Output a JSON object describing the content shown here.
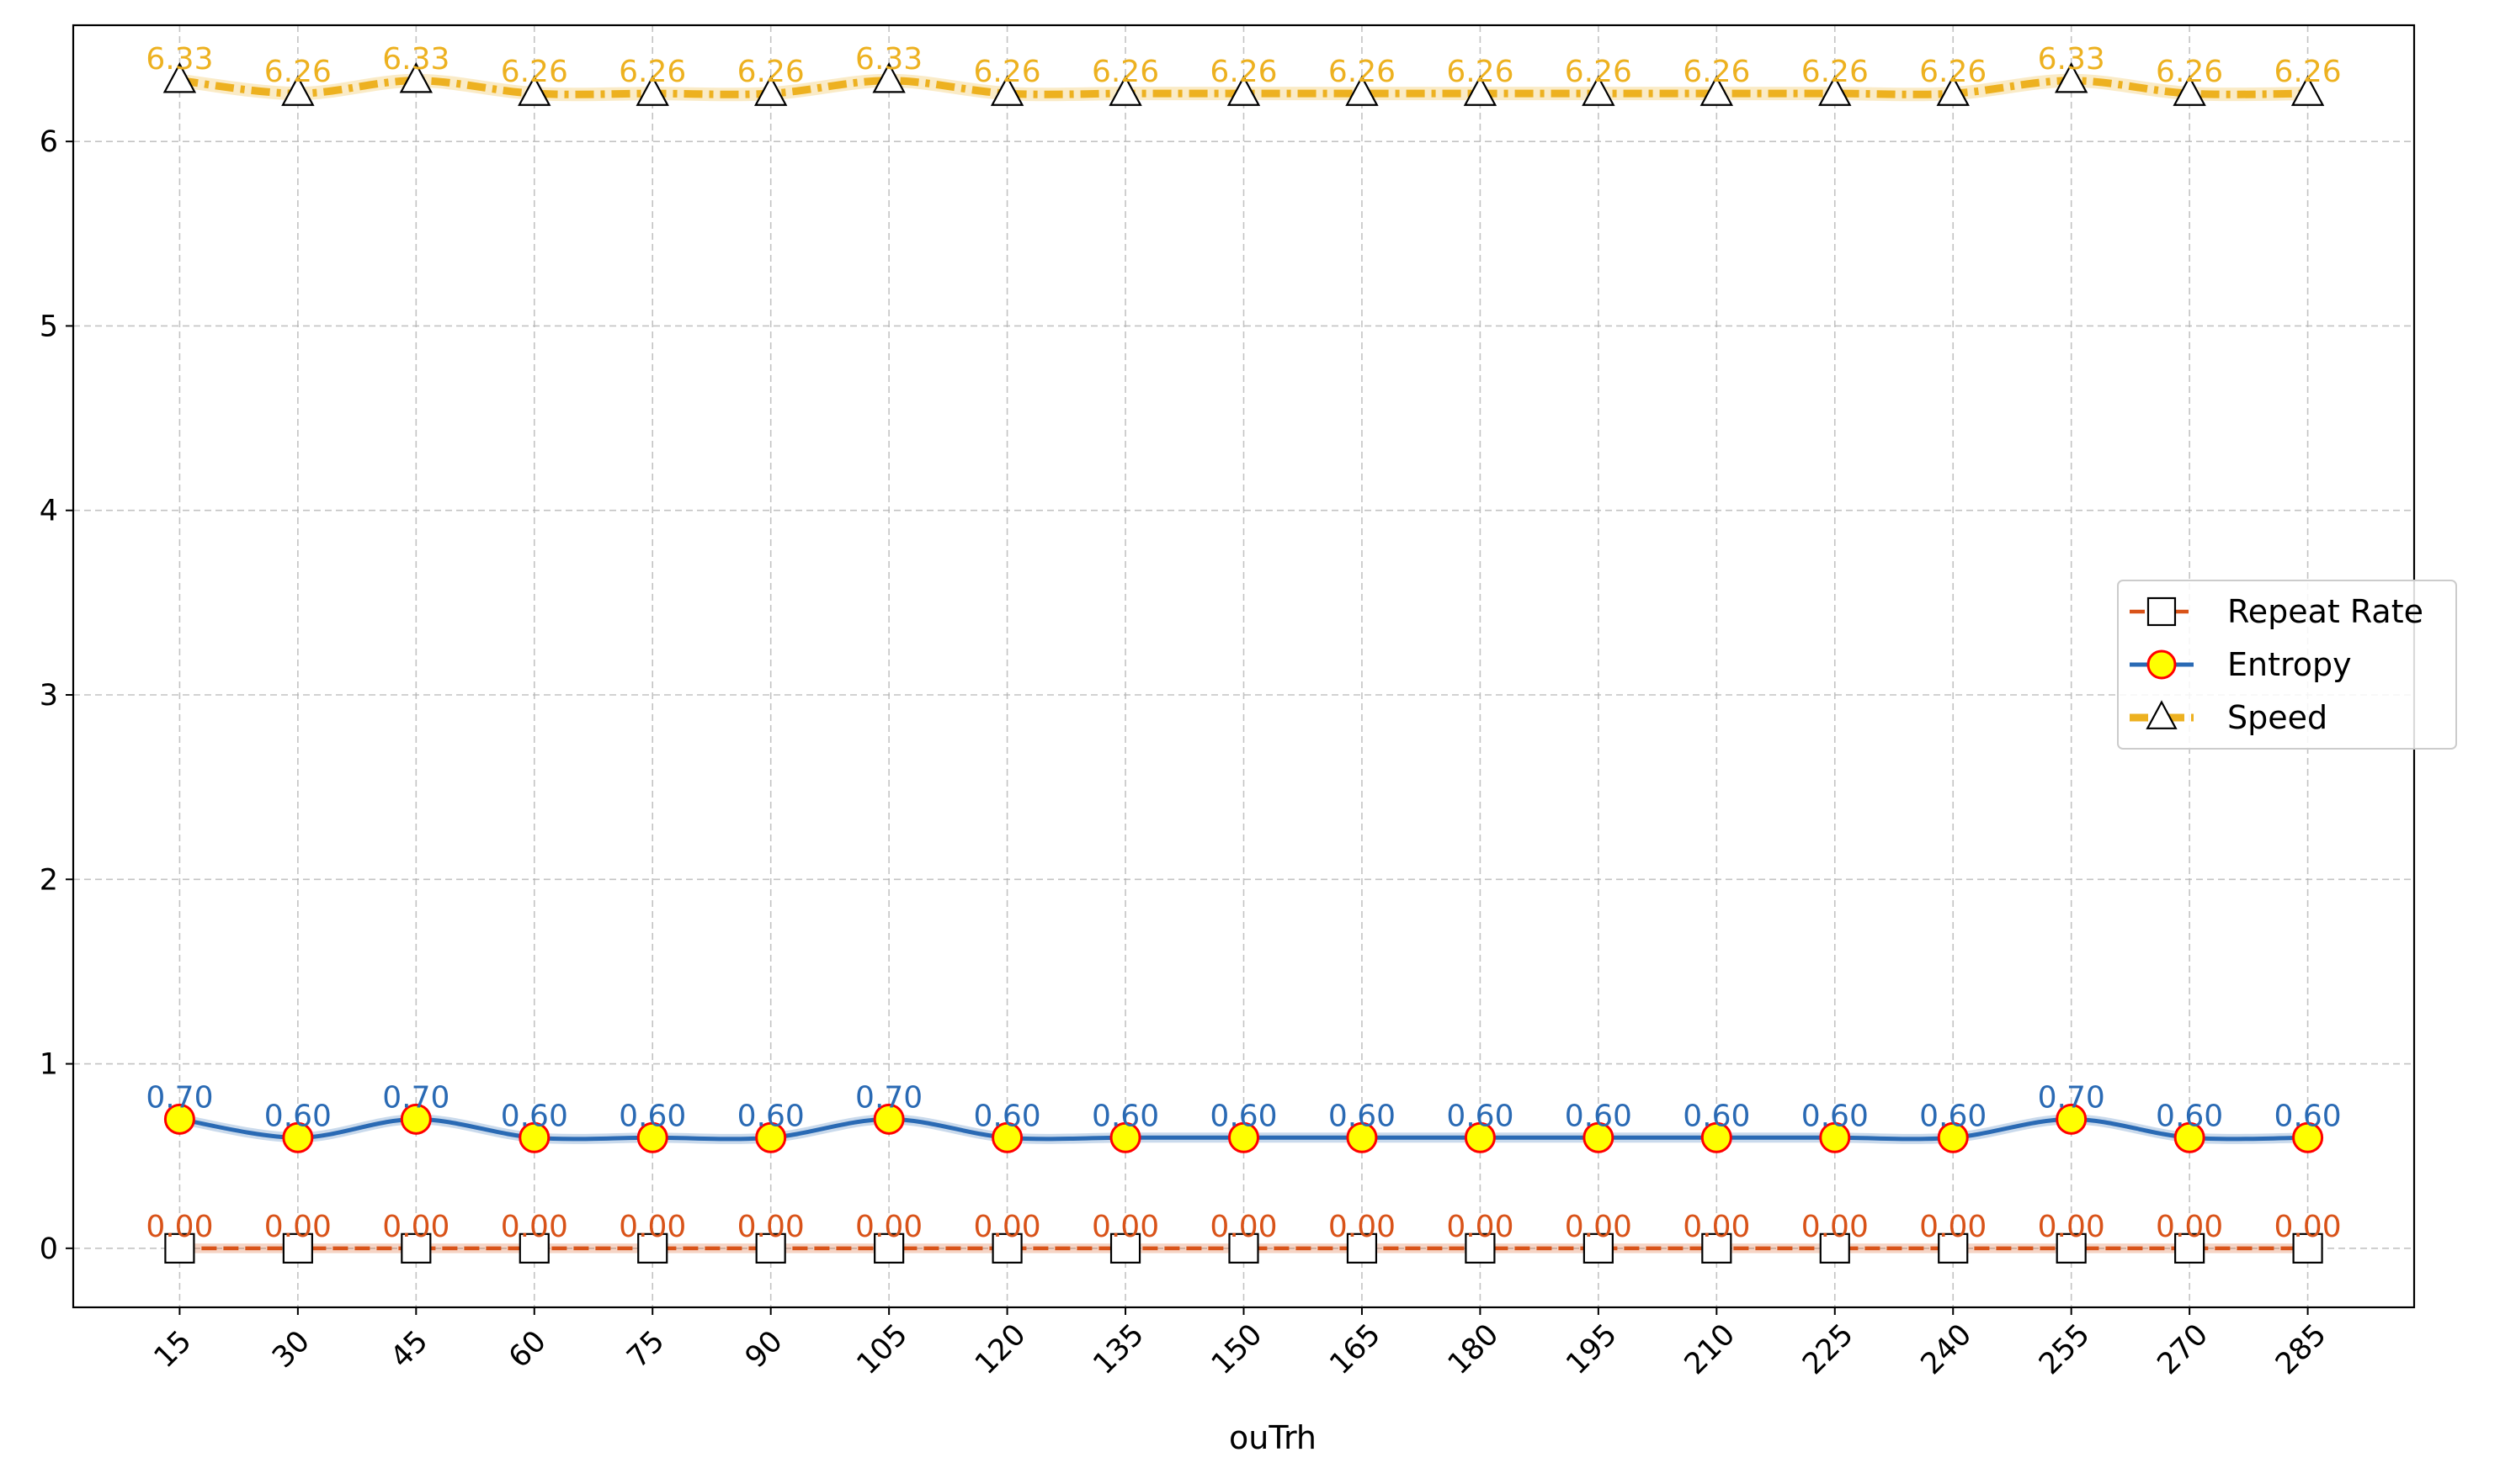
{
  "chart_data": {
    "type": "line",
    "title": "",
    "xlabel": "ouTrh",
    "ylabel": "",
    "x": [
      15,
      30,
      45,
      60,
      75,
      90,
      105,
      120,
      135,
      150,
      165,
      180,
      195,
      210,
      225,
      240,
      255,
      270,
      285
    ],
    "x_tick_labels": [
      "15",
      "30",
      "45",
      "60",
      "75",
      "90",
      "105",
      "120",
      "135",
      "150",
      "165",
      "180",
      "195",
      "210",
      "225",
      "240",
      "255",
      "270",
      "285"
    ],
    "ylim": [
      -0.32,
      6.63
    ],
    "y_ticks": [
      0,
      1,
      2,
      3,
      4,
      5,
      6
    ],
    "y_tick_labels": [
      "0",
      "1",
      "2",
      "3",
      "4",
      "5",
      "6"
    ],
    "grid": true,
    "legend_position": "center-right",
    "series": [
      {
        "name": "Repeat Rate",
        "color": "#d95319",
        "marker": "square",
        "line_style": "dashed",
        "values": [
          0,
          0,
          0,
          0,
          0,
          0,
          0,
          0,
          0,
          0,
          0,
          0,
          0,
          0,
          0,
          0,
          0,
          0,
          0
        ],
        "labels": [
          "0.00",
          "0.00",
          "0.00",
          "0.00",
          "0.00",
          "0.00",
          "0.00",
          "0.00",
          "0.00",
          "0.00",
          "0.00",
          "0.00",
          "0.00",
          "0.00",
          "0.00",
          "0.00",
          "0.00",
          "0.00",
          "0.00"
        ]
      },
      {
        "name": "Entropy",
        "color": "#2a6ab4",
        "marker": "circle",
        "marker_fill": "#ffff00",
        "marker_edge": "#ff0000",
        "line_style": "solid",
        "values": [
          0.7,
          0.6,
          0.7,
          0.6,
          0.6,
          0.6,
          0.7,
          0.6,
          0.6,
          0.6,
          0.6,
          0.6,
          0.6,
          0.6,
          0.6,
          0.6,
          0.7,
          0.6,
          0.6
        ],
        "labels": [
          "0.70",
          "0.60",
          "0.70",
          "0.60",
          "0.60",
          "0.60",
          "0.70",
          "0.60",
          "0.60",
          "0.60",
          "0.60",
          "0.60",
          "0.60",
          "0.60",
          "0.60",
          "0.60",
          "0.70",
          "0.60",
          "0.60"
        ]
      },
      {
        "name": "Speed",
        "color": "#edb120",
        "marker": "triangle",
        "line_style": "dashdot",
        "values": [
          6.33,
          6.26,
          6.33,
          6.26,
          6.26,
          6.26,
          6.33,
          6.26,
          6.26,
          6.26,
          6.26,
          6.26,
          6.26,
          6.26,
          6.26,
          6.26,
          6.33,
          6.26,
          6.26
        ],
        "labels": [
          "6.33",
          "6.26",
          "6.33",
          "6.26",
          "6.26",
          "6.26",
          "6.33",
          "6.26",
          "6.26",
          "6.26",
          "6.26",
          "6.26",
          "6.26",
          "6.26",
          "6.26",
          "6.26",
          "6.33",
          "6.26",
          "6.26"
        ]
      }
    ]
  }
}
